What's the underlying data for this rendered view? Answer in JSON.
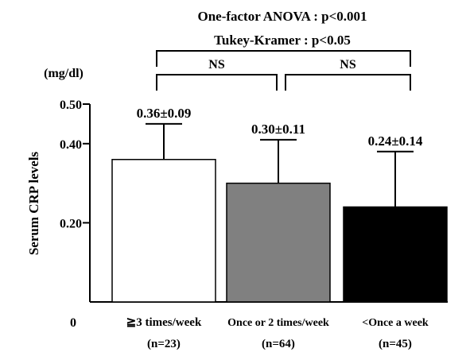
{
  "chart_data": {
    "type": "bar",
    "ylabel": "Serum CRP levels",
    "yunit": "(mg/dl)",
    "ylim": [
      0,
      0.5
    ],
    "yticks": [
      {
        "value": 0.5,
        "label": "0.50"
      },
      {
        "value": 0.4,
        "label": "0.40"
      },
      {
        "value": 0.2,
        "label": "0.20"
      },
      {
        "value": 0,
        "label": "0"
      }
    ],
    "categories": [
      "≧3 times/week",
      "Once or 2 times/week",
      "<Once a week"
    ],
    "n_labels": [
      "(n=23)",
      "(n=64)",
      "(n=45)"
    ],
    "values": [
      0.36,
      0.3,
      0.24
    ],
    "errors": [
      0.09,
      0.11,
      0.14
    ],
    "data_labels": [
      "0.36±0.09",
      "0.30±0.11",
      "0.24±0.14"
    ],
    "colors": [
      "#ffffff",
      "#808080",
      "#000000"
    ],
    "annotations": {
      "anova": "One-factor ANOVA : p<0.001",
      "tukey": "Tukey-Kramer : p<0.05",
      "comparisons": [
        {
          "from": 0,
          "to": 1,
          "label": "NS"
        },
        {
          "from": 1,
          "to": 2,
          "label": "NS"
        }
      ]
    }
  }
}
